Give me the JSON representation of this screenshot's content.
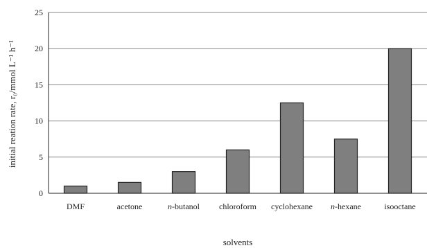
{
  "chart_data": {
    "type": "bar",
    "categories": [
      "DMF",
      "acetone",
      "n-butanol",
      "chloroform",
      "cyclohexane",
      "n-hexane",
      "isooctane"
    ],
    "values": [
      1,
      1.5,
      3,
      6,
      12.5,
      7.5,
      20
    ],
    "xlabel": "solvents",
    "ylabel": "initial reation rate, r₀/mmol L⁻¹ h⁻¹",
    "ylim": [
      0,
      25
    ],
    "yticks": [
      0,
      5,
      10,
      15,
      20,
      25
    ],
    "grid": true,
    "bar_color": "#7f7f7f"
  }
}
